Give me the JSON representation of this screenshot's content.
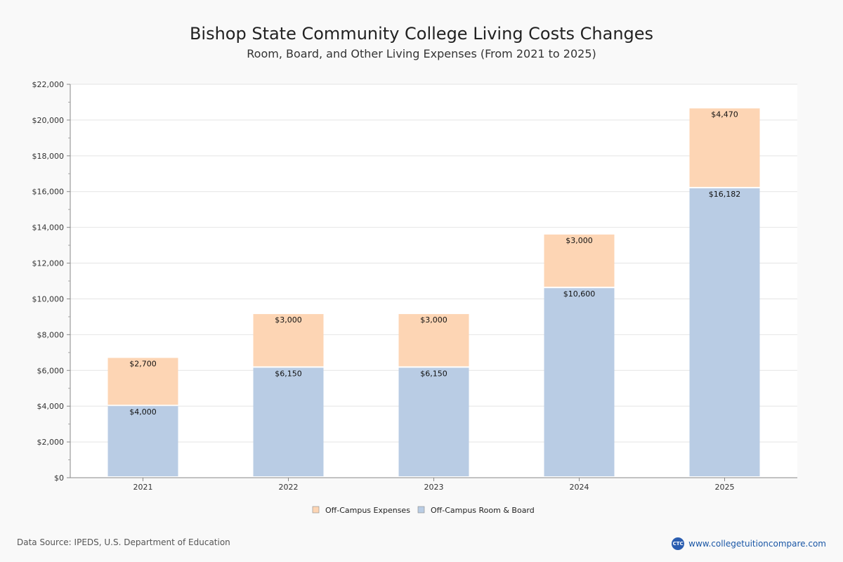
{
  "chart_data": {
    "type": "bar",
    "stacked": true,
    "title": "Bishop State Community College Living Costs Changes",
    "subtitle": "Room, Board, and Other Living Expenses (From 2021 to 2025)",
    "categories": [
      "2021",
      "2022",
      "2023",
      "2024",
      "2025"
    ],
    "series": [
      {
        "name": "Off-Campus Room & Board",
        "color": "#b9cce4",
        "values": [
          4000,
          6150,
          6150,
          10600,
          16182
        ],
        "labels": [
          "$4,000",
          "$6,150",
          "$6,150",
          "$10,600",
          "$16,182"
        ]
      },
      {
        "name": "Off-Campus Expenses",
        "color": "#fdd5b4",
        "values": [
          2700,
          3000,
          3000,
          3000,
          4470
        ],
        "labels": [
          "$2,700",
          "$3,000",
          "$3,000",
          "$3,000",
          "$4,470"
        ]
      }
    ],
    "ylim": [
      0,
      22000
    ],
    "yticks": [
      0,
      2000,
      4000,
      6000,
      8000,
      10000,
      12000,
      14000,
      16000,
      18000,
      20000,
      22000
    ],
    "ytick_labels": [
      "$0",
      "$2,000",
      "$4,000",
      "$6,000",
      "$8,000",
      "$10,000",
      "$12,000",
      "$14,000",
      "$16,000",
      "$18,000",
      "$20,000",
      "$22,000"
    ],
    "grid": true,
    "legend_position": "bottom-center",
    "legend_order": [
      "Off-Campus Expenses",
      "Off-Campus Room & Board"
    ]
  },
  "footer": {
    "source": "Data Source: IPEDS, U.S. Department of Education",
    "site": "www.collegetuitioncompare.com",
    "logo_text": "CTC"
  }
}
